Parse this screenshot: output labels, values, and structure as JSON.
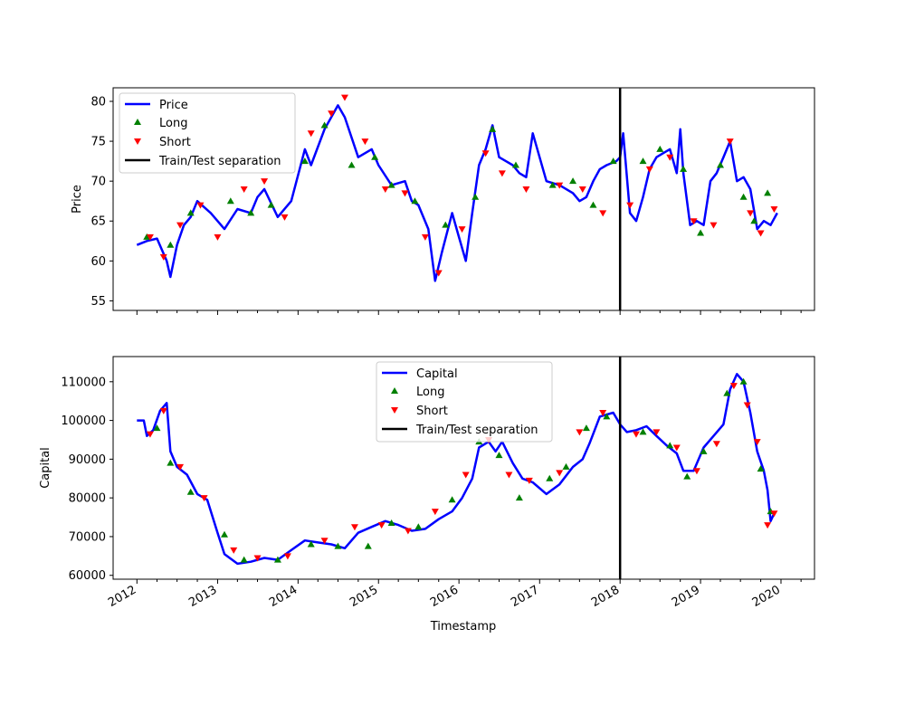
{
  "chart_data": [
    {
      "type": "line",
      "ylabel": "Price",
      "ylim": [
        53.8,
        81.7
      ],
      "yticks": [
        55,
        60,
        65,
        70,
        75,
        80
      ],
      "x_range": [
        "2011-09-15",
        "2020-06-01"
      ],
      "separation_date": "2018-01-01",
      "legend_position": "upper-left",
      "grid": false,
      "series": [
        {
          "name": "Price",
          "color": "#0000ff",
          "x": [
            "2012-01-01",
            "2012-02-15",
            "2012-04-01",
            "2012-05-15",
            "2012-06-01",
            "2012-07-01",
            "2012-08-01",
            "2012-09-01",
            "2012-10-01",
            "2012-12-01",
            "2013-02-01",
            "2013-04-01",
            "2013-06-01",
            "2013-07-01",
            "2013-08-01",
            "2013-10-01",
            "2013-12-01",
            "2014-02-01",
            "2014-03-01",
            "2014-05-01",
            "2014-07-01",
            "2014-08-01",
            "2014-10-01",
            "2014-12-01",
            "2015-01-01",
            "2015-03-01",
            "2015-05-01",
            "2015-06-01",
            "2015-07-01",
            "2015-08-15",
            "2015-09-15",
            "2015-10-15",
            "2015-12-01",
            "2016-01-01",
            "2016-02-01",
            "2016-03-01",
            "2016-04-01",
            "2016-05-01",
            "2016-06-01",
            "2016-07-01",
            "2016-08-01",
            "2016-09-01",
            "2016-10-01",
            "2016-11-01",
            "2016-12-01",
            "2017-02-01",
            "2017-04-01",
            "2017-06-01",
            "2017-07-01",
            "2017-08-01",
            "2017-09-01",
            "2017-10-01",
            "2017-11-01",
            "2017-12-15",
            "2018-01-01",
            "2018-01-15",
            "2018-02-15",
            "2018-03-15",
            "2018-04-15",
            "2018-05-15",
            "2018-06-15",
            "2018-07-15",
            "2018-08-15",
            "2018-09-15",
            "2018-10-01",
            "2018-10-15",
            "2018-11-15",
            "2018-12-15",
            "2019-01-15",
            "2019-02-15",
            "2019-03-15",
            "2019-04-15",
            "2019-05-15",
            "2019-06-15",
            "2019-07-15",
            "2019-08-15",
            "2019-09-15",
            "2019-10-15",
            "2019-11-15",
            "2019-12-15"
          ],
          "values": [
            62,
            62.5,
            62.8,
            60,
            58,
            62,
            64.5,
            65.5,
            67.5,
            66,
            64,
            66.5,
            66,
            68,
            69,
            65.5,
            67.5,
            74,
            72,
            76.5,
            79.5,
            78,
            73,
            74,
            72,
            69.5,
            70,
            67.5,
            67,
            64,
            57.5,
            61,
            66,
            63,
            60,
            66,
            72,
            74,
            77,
            73,
            72.5,
            72,
            71,
            70.5,
            76,
            70,
            69.5,
            68.5,
            67.5,
            68,
            70,
            71.5,
            72,
            72.5,
            73,
            76,
            66,
            65,
            68,
            71.5,
            73,
            73.5,
            74,
            71,
            76.5,
            71,
            64.5,
            65,
            64.5,
            70,
            71,
            73,
            75,
            70,
            70.5,
            69,
            64,
            65,
            64.5,
            66
          ]
        },
        {
          "name": "Long",
          "color": "#008000",
          "x": [
            "2012-02-15",
            "2012-06-01",
            "2012-09-01",
            "2013-03-01",
            "2013-06-01",
            "2013-09-01",
            "2014-02-01",
            "2014-05-01",
            "2014-09-01",
            "2014-12-15",
            "2015-03-01",
            "2015-06-15",
            "2015-11-01",
            "2016-03-15",
            "2016-06-01",
            "2016-09-15",
            "2017-03-01",
            "2017-06-01",
            "2017-09-01",
            "2017-12-01",
            "2018-04-15",
            "2018-07-01",
            "2018-10-15",
            "2019-01-01",
            "2019-04-01",
            "2019-07-15",
            "2019-09-01",
            "2019-11-01"
          ],
          "values": [
            63,
            62,
            66,
            67.5,
            66,
            67,
            72.5,
            77,
            72,
            73,
            69.5,
            67.5,
            64.5,
            68,
            76.5,
            72,
            69.5,
            70,
            67,
            72.5,
            72.5,
            74,
            71.5,
            63.5,
            72,
            68,
            65,
            68.5
          ]
        },
        {
          "name": "Short",
          "color": "#ff0000",
          "x": [
            "2012-03-01",
            "2012-05-01",
            "2012-07-15",
            "2012-10-15",
            "2013-01-01",
            "2013-05-01",
            "2013-08-01",
            "2013-11-01",
            "2014-03-01",
            "2014-06-01",
            "2014-08-01",
            "2014-11-01",
            "2015-02-01",
            "2015-05-01",
            "2015-08-01",
            "2015-10-01",
            "2016-01-15",
            "2016-05-01",
            "2016-07-15",
            "2016-11-01",
            "2017-04-01",
            "2017-07-15",
            "2017-10-15",
            "2018-02-15",
            "2018-05-15",
            "2018-08-15",
            "2018-12-01",
            "2019-03-01",
            "2019-05-15",
            "2019-08-15",
            "2019-10-01",
            "2019-12-01"
          ],
          "values": [
            63,
            60.5,
            64.5,
            67,
            63,
            69,
            70,
            65.5,
            76,
            78.5,
            80.5,
            75,
            69,
            68.5,
            63,
            58.5,
            64,
            73.5,
            71,
            69,
            69.5,
            69,
            66,
            67,
            71.5,
            73,
            65,
            64.5,
            75,
            66,
            63.5,
            66.5
          ]
        },
        {
          "name": "Train/Test separation",
          "color": "#000000"
        }
      ]
    },
    {
      "type": "line",
      "ylabel": "Capital",
      "xlabel": "Timestamp",
      "ylim": [
        59000,
        116500
      ],
      "yticks": [
        60000,
        70000,
        80000,
        90000,
        100000,
        110000
      ],
      "x_range": [
        "2011-09-15",
        "2020-06-01"
      ],
      "xticks": [
        "2012",
        "2013",
        "2014",
        "2015",
        "2016",
        "2017",
        "2018",
        "2019",
        "2020"
      ],
      "separation_date": "2018-01-01",
      "legend_position": "upper-center",
      "grid": false,
      "series": [
        {
          "name": "Capital",
          "color": "#0000ff",
          "x": [
            "2012-01-01",
            "2012-02-01",
            "2012-02-15",
            "2012-03-15",
            "2012-04-15",
            "2012-05-15",
            "2012-06-01",
            "2012-07-01",
            "2012-08-15",
            "2012-10-01",
            "2012-11-15",
            "2013-01-01",
            "2013-02-01",
            "2013-04-01",
            "2013-06-01",
            "2013-08-01",
            "2013-10-01",
            "2013-12-01",
            "2014-02-01",
            "2014-04-01",
            "2014-06-01",
            "2014-08-01",
            "2014-10-01",
            "2014-12-01",
            "2015-02-01",
            "2015-04-01",
            "2015-06-01",
            "2015-08-01",
            "2015-10-01",
            "2015-12-01",
            "2016-01-15",
            "2016-03-01",
            "2016-04-01",
            "2016-05-15",
            "2016-06-15",
            "2016-07-15",
            "2016-09-01",
            "2016-10-15",
            "2016-12-01",
            "2017-02-01",
            "2017-04-01",
            "2017-06-01",
            "2017-07-15",
            "2017-08-15",
            "2017-10-01",
            "2017-12-01",
            "2018-01-01",
            "2018-02-01",
            "2018-03-15",
            "2018-05-01",
            "2018-06-15",
            "2018-08-01",
            "2018-09-15",
            "2018-10-15",
            "2018-12-01",
            "2019-01-15",
            "2019-03-01",
            "2019-04-15",
            "2019-05-15",
            "2019-06-15",
            "2019-07-15",
            "2019-08-15",
            "2019-09-15",
            "2019-10-15",
            "2019-11-01",
            "2019-11-15",
            "2019-12-01"
          ],
          "values": [
            100000,
            100000,
            96000,
            97500,
            102500,
            104500,
            92000,
            88000,
            86000,
            81000,
            79500,
            71000,
            65500,
            63000,
            63500,
            64500,
            64000,
            66500,
            69000,
            68500,
            68000,
            67000,
            71000,
            72500,
            74000,
            73000,
            71500,
            72000,
            74500,
            76500,
            80000,
            85000,
            93000,
            94500,
            92000,
            94500,
            89000,
            85000,
            84000,
            81000,
            83500,
            88000,
            90000,
            94000,
            101000,
            102000,
            99000,
            97000,
            97500,
            98500,
            96000,
            93500,
            91500,
            87000,
            87000,
            93000,
            96000,
            99000,
            108000,
            112000,
            110000,
            102000,
            92000,
            87000,
            82000,
            74000,
            76000
          ]
        },
        {
          "name": "Long",
          "color": "#008000",
          "x": [
            "2012-04-01",
            "2012-06-01",
            "2012-09-01",
            "2013-02-01",
            "2013-05-01",
            "2013-10-01",
            "2014-03-01",
            "2014-07-01",
            "2014-11-15",
            "2015-03-01",
            "2015-07-01",
            "2015-12-01",
            "2016-04-01",
            "2016-07-01",
            "2016-10-01",
            "2017-02-15",
            "2017-05-01",
            "2017-08-01",
            "2017-11-01",
            "2018-04-15",
            "2018-08-15",
            "2018-11-01",
            "2019-01-15",
            "2019-05-01",
            "2019-07-15",
            "2019-10-01",
            "2019-11-15"
          ],
          "values": [
            98000,
            89000,
            81500,
            70500,
            64000,
            64000,
            68000,
            67500,
            67500,
            73500,
            72500,
            79500,
            94500,
            91000,
            80000,
            85000,
            88000,
            98000,
            101000,
            97000,
            93500,
            85500,
            92000,
            107000,
            110000,
            87500,
            76500
          ]
        },
        {
          "name": "Short",
          "color": "#ff0000",
          "x": [
            "2012-03-01",
            "2012-05-01",
            "2012-07-15",
            "2012-11-01",
            "2013-03-15",
            "2013-07-01",
            "2013-11-15",
            "2014-05-01",
            "2014-09-15",
            "2015-01-15",
            "2015-05-15",
            "2015-09-15",
            "2016-02-01",
            "2016-05-15",
            "2016-08-15",
            "2016-11-15",
            "2017-04-01",
            "2017-07-01",
            "2017-10-15",
            "2018-03-15",
            "2018-06-15",
            "2018-09-15",
            "2018-12-15",
            "2019-03-15",
            "2019-06-01",
            "2019-08-01",
            "2019-09-15",
            "2019-11-01",
            "2019-12-01"
          ],
          "values": [
            96500,
            102500,
            88000,
            80000,
            66500,
            64500,
            65000,
            69000,
            72500,
            73000,
            71500,
            76500,
            86000,
            95000,
            86000,
            84500,
            86500,
            97000,
            102000,
            96500,
            97000,
            93000,
            87000,
            94000,
            109000,
            104000,
            94500,
            73000,
            76000
          ]
        },
        {
          "name": "Train/Test separation",
          "color": "#000000"
        }
      ]
    }
  ]
}
